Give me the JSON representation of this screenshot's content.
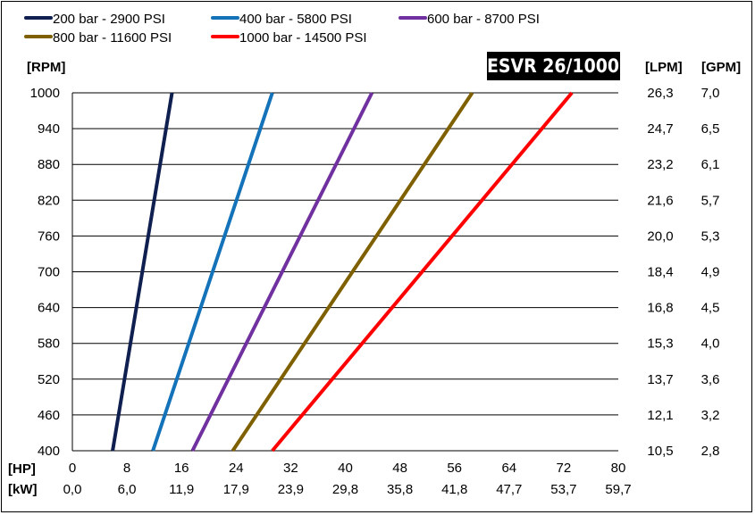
{
  "chart_data": {
    "type": "line",
    "title": "ESVR 26/1000",
    "y_axis_left": {
      "label": "[RPM]",
      "ticks": [
        "400",
        "460",
        "520",
        "580",
        "640",
        "700",
        "760",
        "820",
        "880",
        "940",
        "1000"
      ],
      "range": [
        400,
        1000
      ]
    },
    "y_axis_right": [
      {
        "label": "[LPM]",
        "ticks": [
          "10,5",
          "12,1",
          "13,7",
          "15,3",
          "16,8",
          "18,4",
          "20,0",
          "21,6",
          "23,2",
          "24,7",
          "26,3"
        ]
      },
      {
        "label": "[GPM]",
        "ticks": [
          "2,8",
          "3,2",
          "3,6",
          "4,0",
          "4,5",
          "4,9",
          "5,3",
          "5,7",
          "6,1",
          "6,5",
          "7,0"
        ]
      }
    ],
    "x_axis": {
      "label": "[HP]",
      "ticks": [
        "0",
        "8",
        "16",
        "24",
        "32",
        "40",
        "48",
        "56",
        "64",
        "72",
        "80"
      ],
      "range": [
        0,
        80
      ]
    },
    "x_axis_secondary": {
      "label": "[kW]",
      "ticks": [
        "0,0",
        "6,0",
        "11,9",
        "17,9",
        "23,9",
        "29,8",
        "35,8",
        "41,8",
        "47,7",
        "53,7",
        "59,7"
      ]
    },
    "grid": "horizontal",
    "legend_position": "top",
    "series": [
      {
        "name": "200 bar - 2900 PSI",
        "color": "#0f1f4f",
        "points": [
          [
            5.9,
            400
          ],
          [
            14.6,
            1000
          ]
        ]
      },
      {
        "name": "400 bar - 5800 PSI",
        "color": "#1473b8",
        "points": [
          [
            11.8,
            400
          ],
          [
            29.3,
            1000
          ]
        ]
      },
      {
        "name": "600 bar - 8700 PSI",
        "color": "#7030a0",
        "points": [
          [
            17.6,
            400
          ],
          [
            43.9,
            1000
          ]
        ]
      },
      {
        "name": "800 bar - 11600 PSI",
        "color": "#7f6000",
        "points": [
          [
            23.5,
            400
          ],
          [
            58.6,
            1000
          ]
        ]
      },
      {
        "name": "1000 bar - 14500 PSI",
        "color": "#ff0000",
        "points": [
          [
            29.3,
            400
          ],
          [
            73.2,
            1000
          ]
        ]
      }
    ]
  }
}
